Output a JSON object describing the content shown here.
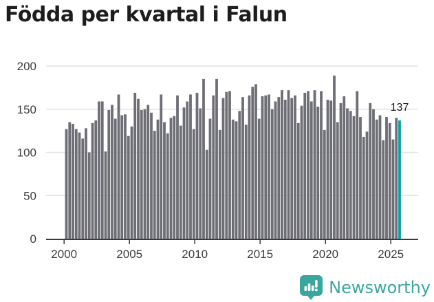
{
  "title": "Födda per kvartal i Falun",
  "chart_data": {
    "type": "bar",
    "title": "Födda per kvartal i Falun",
    "xlabel": "",
    "ylabel": "",
    "ylim": [
      0,
      200
    ],
    "grid": "horizontal",
    "y_tick_labels": [
      "0",
      "50",
      "100",
      "150",
      "200"
    ],
    "y_tick_values": [
      0,
      50,
      100,
      150,
      200
    ],
    "x_tick_labels": [
      "2000",
      "2005",
      "2010",
      "2015",
      "2020",
      "2025"
    ],
    "annotation": "137",
    "annotation_value": 137,
    "bar_color": "#6e6e76",
    "highlight_color": "#0aa0a0",
    "grid_color": "#e2e2e2",
    "axis_color": "#3a3a3a",
    "text_color": "#3c3c3c",
    "annotation_color": "#1d1d1d",
    "highlight_index": 102,
    "categories": [
      "2000-Q1",
      "2000-Q2",
      "2000-Q3",
      "2000-Q4",
      "2001-Q1",
      "2001-Q2",
      "2001-Q3",
      "2001-Q4",
      "2002-Q1",
      "2002-Q2",
      "2002-Q3",
      "2002-Q4",
      "2003-Q1",
      "2003-Q2",
      "2003-Q3",
      "2003-Q4",
      "2004-Q1",
      "2004-Q2",
      "2004-Q3",
      "2004-Q4",
      "2005-Q1",
      "2005-Q2",
      "2005-Q3",
      "2005-Q4",
      "2006-Q1",
      "2006-Q2",
      "2006-Q3",
      "2006-Q4",
      "2007-Q1",
      "2007-Q2",
      "2007-Q3",
      "2007-Q4",
      "2008-Q1",
      "2008-Q2",
      "2008-Q3",
      "2008-Q4",
      "2009-Q1",
      "2009-Q2",
      "2009-Q3",
      "2009-Q4",
      "2010-Q1",
      "2010-Q2",
      "2010-Q3",
      "2010-Q4",
      "2011-Q1",
      "2011-Q2",
      "2011-Q3",
      "2011-Q4",
      "2012-Q1",
      "2012-Q2",
      "2012-Q3",
      "2012-Q4",
      "2013-Q1",
      "2013-Q2",
      "2013-Q3",
      "2013-Q4",
      "2014-Q1",
      "2014-Q2",
      "2014-Q3",
      "2014-Q4",
      "2015-Q1",
      "2015-Q2",
      "2015-Q3",
      "2015-Q4",
      "2016-Q1",
      "2016-Q2",
      "2016-Q3",
      "2016-Q4",
      "2017-Q1",
      "2017-Q2",
      "2017-Q3",
      "2017-Q4",
      "2018-Q1",
      "2018-Q2",
      "2018-Q3",
      "2018-Q4",
      "2019-Q1",
      "2019-Q2",
      "2019-Q3",
      "2019-Q4",
      "2020-Q1",
      "2020-Q2",
      "2020-Q3",
      "2020-Q4",
      "2021-Q1",
      "2021-Q2",
      "2021-Q3",
      "2021-Q4",
      "2022-Q1",
      "2022-Q2",
      "2022-Q3",
      "2022-Q4",
      "2023-Q1",
      "2023-Q2",
      "2023-Q3",
      "2023-Q4",
      "2024-Q1",
      "2024-Q2",
      "2024-Q3",
      "2024-Q4",
      "2025-Q1",
      "2025-Q2",
      "2025-Q3"
    ],
    "values": [
      127,
      135,
      133,
      127,
      123,
      116,
      128,
      100,
      134,
      137,
      159,
      159,
      101,
      149,
      155,
      139,
      167,
      143,
      144,
      119,
      130,
      169,
      162,
      149,
      150,
      155,
      146,
      125,
      138,
      167,
      135,
      122,
      140,
      142,
      166,
      131,
      152,
      159,
      167,
      127,
      169,
      151,
      185,
      103,
      139,
      166,
      185,
      126,
      163,
      170,
      171,
      138,
      136,
      148,
      164,
      132,
      166,
      176,
      179,
      139,
      165,
      166,
      167,
      150,
      159,
      164,
      172,
      161,
      172,
      163,
      166,
      134,
      154,
      169,
      171,
      159,
      172,
      153,
      171,
      126,
      161,
      160,
      189,
      135,
      157,
      165,
      151,
      148,
      142,
      171,
      141,
      118,
      124,
      157,
      150,
      138,
      143,
      114,
      141,
      134,
      115,
      140,
      137
    ]
  },
  "branding": {
    "logo_text": "Newsworthy",
    "logo_color": "#3aa79e",
    "logo_icon": "newsworthy-bubble-chart-icon"
  }
}
